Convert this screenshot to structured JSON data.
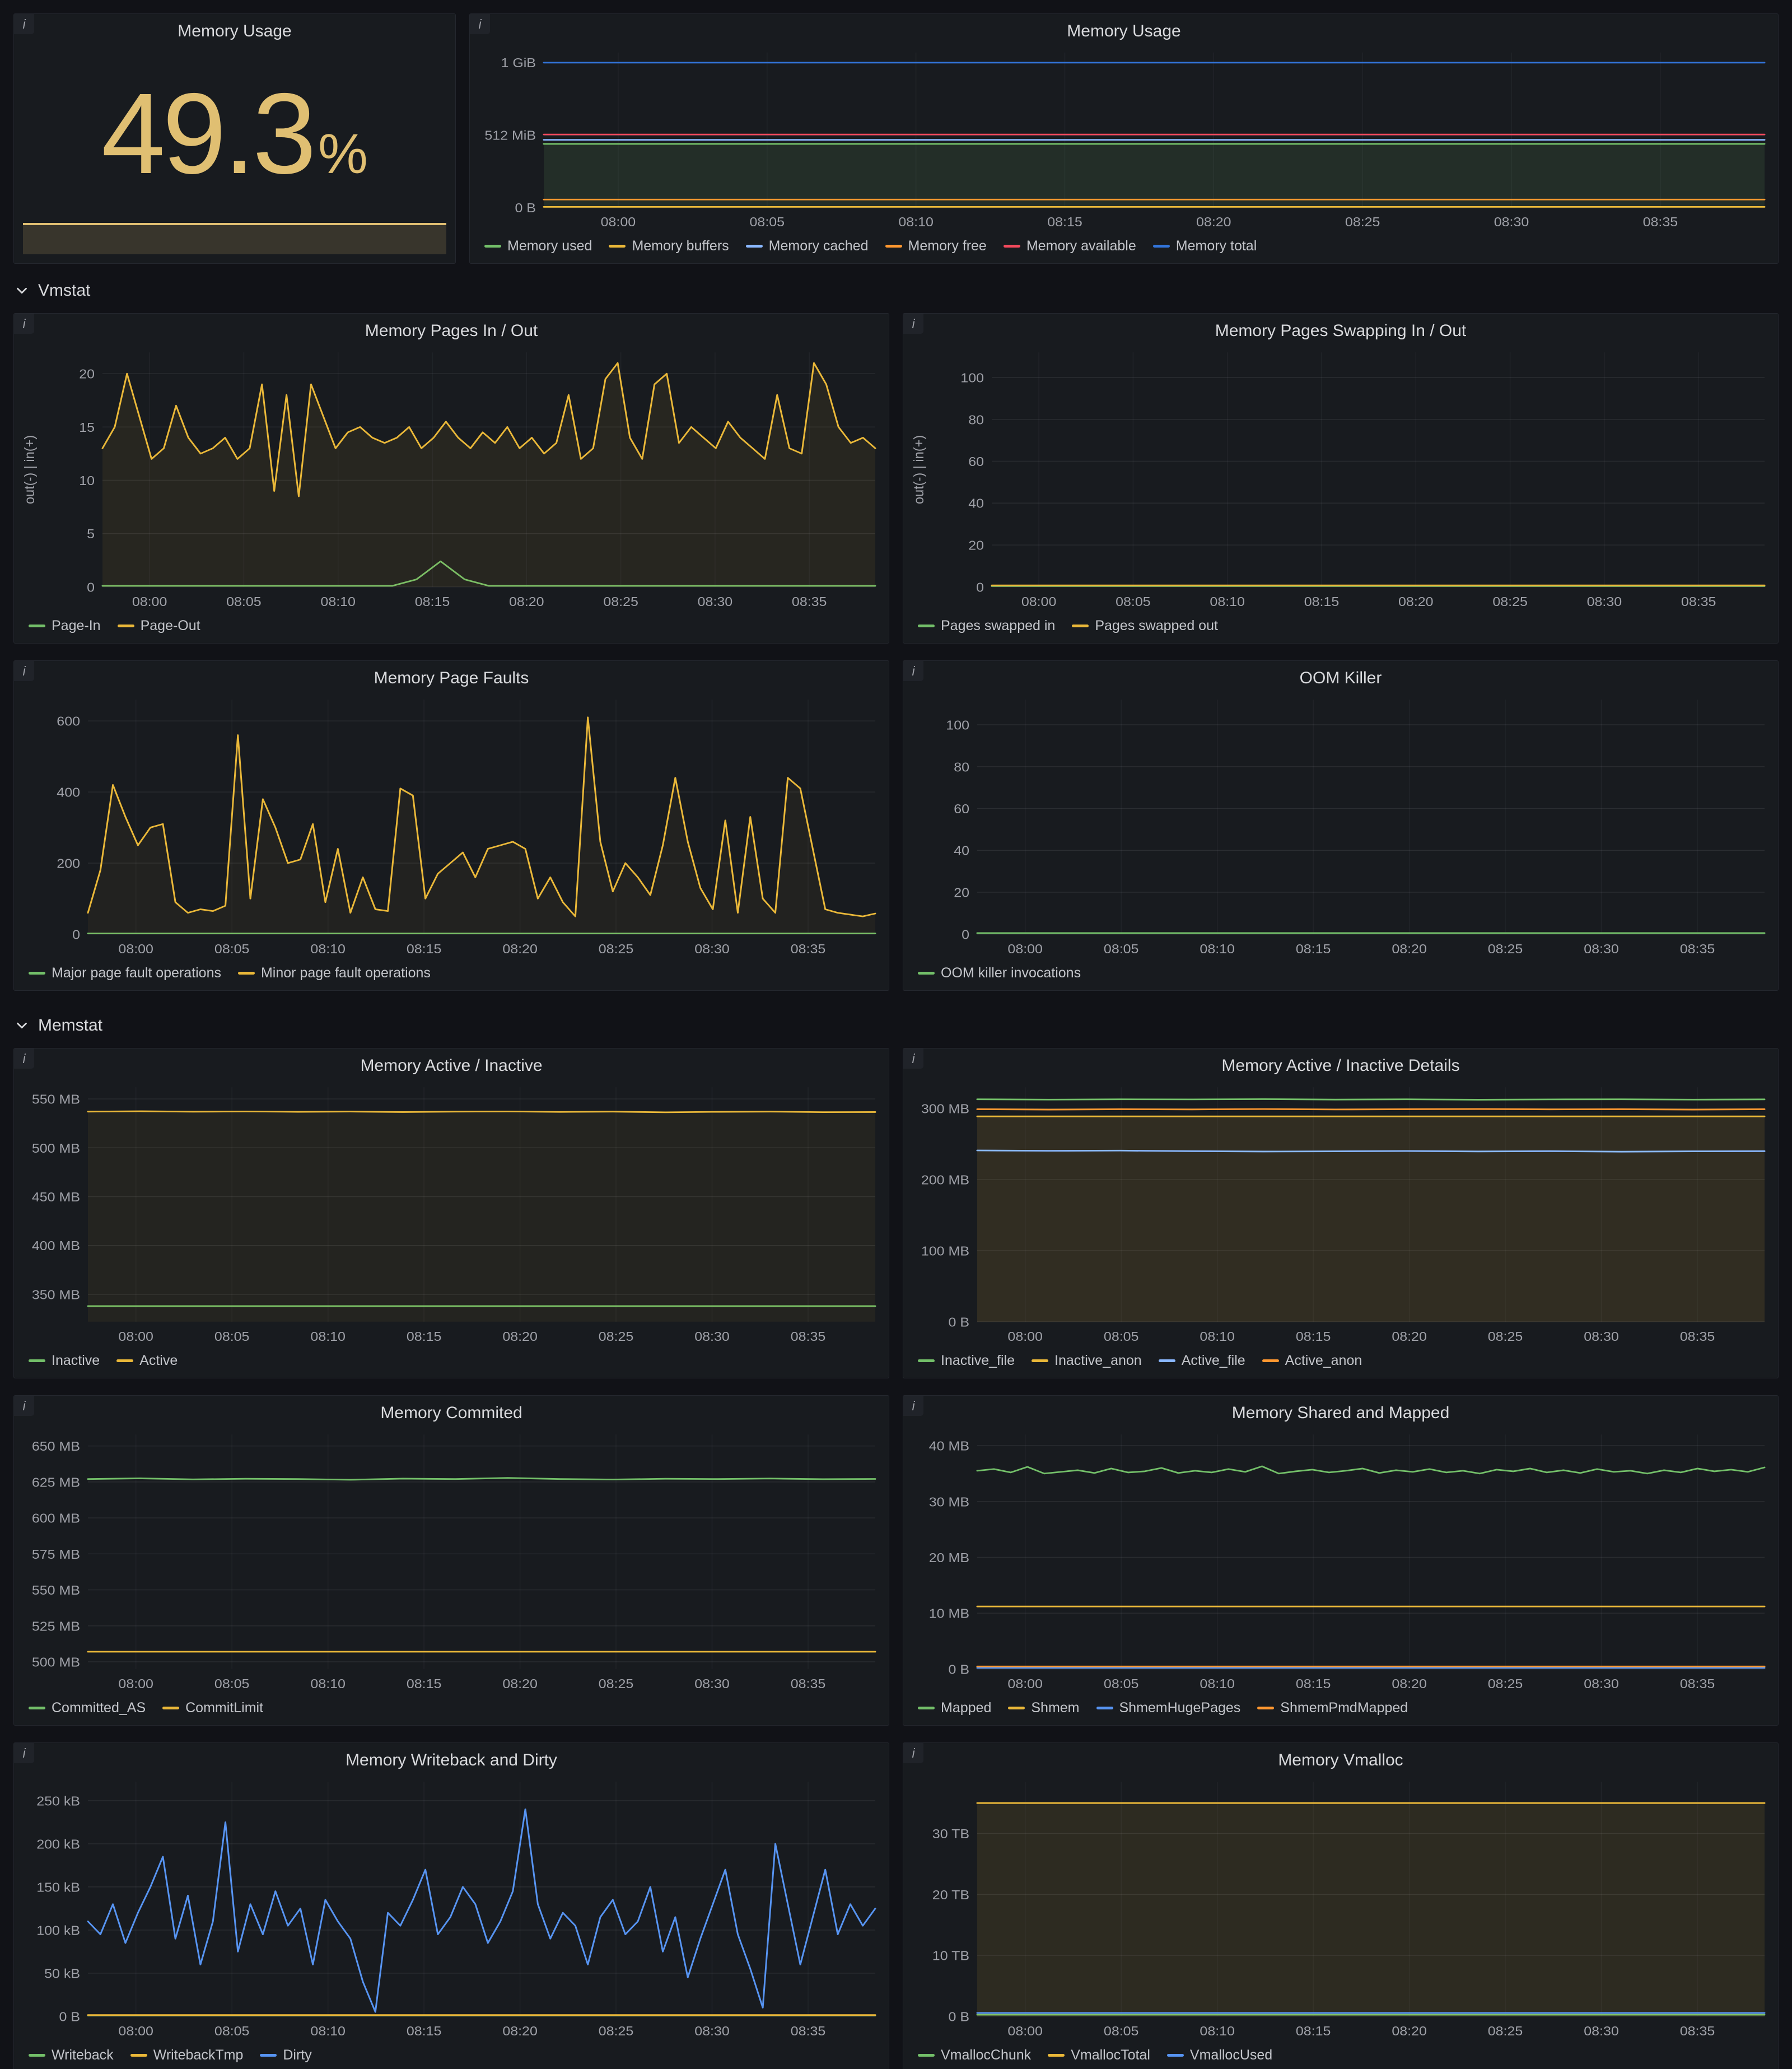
{
  "accent_colors": {
    "green": "#73bf69",
    "yellow": "#eab839",
    "blue": "#5794f2",
    "light_blue": "#8ab8ff",
    "dark_blue": "#3274d9",
    "orange": "#ff9830",
    "red": "#f2495c",
    "stat_yellow": "#e0bf72"
  },
  "time_axis": {
    "labels": [
      "08:00",
      "08:05",
      "08:10",
      "08:15",
      "08:20",
      "08:25",
      "08:30",
      "08:35"
    ],
    "minutes": [
      0,
      5,
      10,
      15,
      20,
      25,
      30,
      35
    ],
    "domain": [
      -2.5,
      38.5
    ]
  },
  "sections": {
    "vmstat": "Vmstat",
    "memstat": "Memstat"
  },
  "panels": {
    "memory_usage_stat": {
      "title": "Memory Usage",
      "value": "49.3",
      "unit": "%",
      "color": "#e0bf72"
    },
    "memory_usage_ts": {
      "title": "Memory Usage",
      "chart": {
        "type": "line",
        "ymin": 0,
        "ymax": 1.07,
        "yticks": [
          {
            "v": 0,
            "label": "0 B"
          },
          {
            "v": 0.5,
            "label": "512 MiB"
          },
          {
            "v": 1,
            "label": "1 GiB"
          }
        ],
        "series": [
          {
            "name": "Memory used",
            "color": "#73bf69",
            "fill": 0.12,
            "values": [
              0.44,
              0.44
            ]
          },
          {
            "name": "Memory buffers",
            "color": "#eab839",
            "fill": 0,
            "values": [
              0.006,
              0.006
            ]
          },
          {
            "name": "Memory cached",
            "color": "#8ab8ff",
            "fill": 0,
            "values": [
              0.468,
              0.468
            ]
          },
          {
            "name": "Memory free",
            "color": "#ff9830",
            "fill": 0,
            "values": [
              0.057,
              0.057
            ]
          },
          {
            "name": "Memory available",
            "color": "#f2495c",
            "fill": 0,
            "values": [
              0.505,
              0.505
            ]
          },
          {
            "name": "Memory total",
            "color": "#3274d9",
            "fill": 0,
            "values": [
              1.0,
              1.0
            ]
          }
        ]
      }
    },
    "pages_in_out": {
      "title": "Memory Pages In / Out",
      "chart": {
        "type": "line",
        "ymin": 0,
        "ymax": 22,
        "ylabel": "out(-) | in(+)",
        "yticks": [
          {
            "v": 0,
            "label": "0"
          },
          {
            "v": 5,
            "label": "5"
          },
          {
            "v": 10,
            "label": "10"
          },
          {
            "v": 15,
            "label": "15"
          },
          {
            "v": 20,
            "label": "20"
          }
        ],
        "series": [
          {
            "name": "Page-In",
            "color": "#73bf69",
            "fill": 0,
            "values": [
              0.1,
              0.1,
              0.1,
              0.1,
              0.1,
              0.1,
              0.1,
              0.1,
              0.1,
              0.1,
              0.1,
              0.1,
              0.1,
              0.7,
              2.4,
              0.7,
              0.1,
              0.1,
              0.1,
              0.1,
              0.1,
              0.1,
              0.1,
              0.1,
              0.1,
              0.1,
              0.1,
              0.1,
              0.1,
              0.1,
              0.1,
              0.1,
              0.1
            ]
          },
          {
            "name": "Page-Out",
            "color": "#eab839",
            "fill": 0.07,
            "values": [
              13,
              15,
              20,
              16,
              12,
              13,
              17,
              14,
              12.5,
              13,
              14,
              12,
              13,
              19,
              9,
              18,
              8.5,
              19,
              16,
              13,
              14.5,
              15,
              14,
              13.5,
              14,
              15,
              13,
              14,
              15.5,
              14,
              13,
              14.5,
              13.5,
              15,
              13,
              14,
              12.5,
              13.5,
              18,
              12,
              13,
              19.5,
              21,
              14,
              12,
              19,
              20,
              13.5,
              15,
              14,
              13,
              15.5,
              14,
              13,
              12,
              18,
              13,
              12.5,
              21,
              19,
              15,
              13.5,
              14,
              13
            ]
          }
        ]
      }
    },
    "swapping": {
      "title": "Memory Pages Swapping In / Out",
      "chart": {
        "type": "line",
        "ymin": 0,
        "ymax": 112,
        "ylabel": "out(-) | in(+)",
        "yticks": [
          {
            "v": 0,
            "label": "0"
          },
          {
            "v": 20,
            "label": "20"
          },
          {
            "v": 40,
            "label": "40"
          },
          {
            "v": 60,
            "label": "60"
          },
          {
            "v": 80,
            "label": "80"
          },
          {
            "v": 100,
            "label": "100"
          }
        ],
        "series": [
          {
            "name": "Pages swapped in",
            "color": "#73bf69",
            "fill": 0,
            "values": [
              0.4,
              0.4
            ]
          },
          {
            "name": "Pages swapped out",
            "color": "#eab839",
            "fill": 0,
            "values": [
              0.7,
              0.7
            ]
          }
        ]
      }
    },
    "page_faults": {
      "title": "Memory Page Faults",
      "chart": {
        "type": "line",
        "ymin": 0,
        "ymax": 660,
        "yticks": [
          {
            "v": 0,
            "label": "0"
          },
          {
            "v": 200,
            "label": "200"
          },
          {
            "v": 400,
            "label": "400"
          },
          {
            "v": 600,
            "label": "600"
          }
        ],
        "series": [
          {
            "name": "Major page fault operations",
            "color": "#73bf69",
            "fill": 0,
            "values": [
              2,
              2
            ]
          },
          {
            "name": "Minor page fault operations",
            "color": "#eab839",
            "fill": 0.05,
            "values": [
              60,
              180,
              420,
              330,
              250,
              300,
              310,
              90,
              60,
              70,
              65,
              80,
              560,
              100,
              380,
              300,
              200,
              210,
              310,
              90,
              240,
              60,
              160,
              70,
              65,
              410,
              390,
              100,
              170,
              200,
              230,
              160,
              240,
              250,
              260,
              240,
              100,
              160,
              90,
              50,
              610,
              260,
              120,
              200,
              160,
              110,
              250,
              440,
              260,
              130,
              70,
              320,
              60,
              330,
              100,
              60,
              440,
              410,
              240,
              70,
              60,
              55,
              50,
              58
            ]
          }
        ]
      }
    },
    "oom": {
      "title": "OOM Killer",
      "chart": {
        "type": "line",
        "ymin": 0,
        "ymax": 112,
        "yticks": [
          {
            "v": 0,
            "label": "0"
          },
          {
            "v": 20,
            "label": "20"
          },
          {
            "v": 40,
            "label": "40"
          },
          {
            "v": 60,
            "label": "60"
          },
          {
            "v": 80,
            "label": "80"
          },
          {
            "v": 100,
            "label": "100"
          }
        ],
        "series": [
          {
            "name": "OOM killer invocations",
            "color": "#73bf69",
            "fill": 0,
            "values": [
              0.5,
              0.5
            ]
          }
        ]
      }
    },
    "active_inactive": {
      "title": "Memory Active / Inactive",
      "chart": {
        "type": "line",
        "ymin": 322,
        "ymax": 562,
        "yticks": [
          {
            "v": 350,
            "label": "350 MB"
          },
          {
            "v": 400,
            "label": "400 MB"
          },
          {
            "v": 450,
            "label": "450 MB"
          },
          {
            "v": 500,
            "label": "500 MB"
          },
          {
            "v": 550,
            "label": "550 MB"
          }
        ],
        "series": [
          {
            "name": "Inactive",
            "color": "#73bf69",
            "fill": 0,
            "values": [
              338,
              338
            ]
          },
          {
            "name": "Active",
            "color": "#eab839",
            "fill": 0.06,
            "values": [
              537,
              537.4,
              536.9,
              537.2,
              536.8,
              537.1,
              536.6,
              537,
              537.2,
              536.7,
              537,
              536.3,
              536.8,
              537,
              536.5,
              536.6
            ]
          }
        ]
      }
    },
    "active_details": {
      "title": "Memory Active / Inactive Details",
      "chart": {
        "type": "line",
        "ymin": 0,
        "ymax": 330,
        "yticks": [
          {
            "v": 0,
            "label": "0 B"
          },
          {
            "v": 100,
            "label": "100 MB"
          },
          {
            "v": 200,
            "label": "200 MB"
          },
          {
            "v": 300,
            "label": "300 MB"
          }
        ],
        "series": [
          {
            "name": "Inactive_file",
            "color": "#73bf69",
            "fill": 0,
            "values": [
              313,
              312.5,
              313,
              312.8,
              313.2,
              312.6,
              313,
              312.4,
              312.8,
              313,
              312.5,
              312.9
            ]
          },
          {
            "name": "Inactive_anon",
            "color": "#eab839",
            "fill": 0.12,
            "values": [
              289,
              289
            ]
          },
          {
            "name": "Active_file",
            "color": "#8ab8ff",
            "fill": 0,
            "values": [
              241,
              240.5,
              240.8,
              240,
              239.5,
              239.8,
              240.2,
              239.6,
              240,
              239.3,
              239.8,
              240
            ]
          },
          {
            "name": "Active_anon",
            "color": "#ff9830",
            "fill": 0,
            "values": [
              299,
              298.5,
              299,
              298.7,
              299.2,
              298.6,
              299,
              299.3,
              298.8,
              299,
              298.5,
              299
            ]
          }
        ]
      }
    },
    "commited": {
      "title": "Memory Commited",
      "chart": {
        "type": "line",
        "ymin": 495,
        "ymax": 658,
        "yticks": [
          {
            "v": 500,
            "label": "500 MB"
          },
          {
            "v": 525,
            "label": "525 MB"
          },
          {
            "v": 550,
            "label": "550 MB"
          },
          {
            "v": 575,
            "label": "575 MB"
          },
          {
            "v": 600,
            "label": "600 MB"
          },
          {
            "v": 625,
            "label": "625 MB"
          },
          {
            "v": 650,
            "label": "650 MB"
          }
        ],
        "series": [
          {
            "name": "Committed_AS",
            "color": "#73bf69",
            "fill": 0,
            "values": [
              627,
              627.5,
              626.8,
              627.2,
              627,
              626.5,
              627.3,
              627,
              627.8,
              627,
              626.7,
              627.2,
              627,
              627.4,
              626.9,
              627.1
            ]
          },
          {
            "name": "CommitLimit",
            "color": "#eab839",
            "fill": 0,
            "values": [
              507,
              507
            ]
          }
        ]
      }
    },
    "shared_mapped": {
      "title": "Memory Shared and Mapped",
      "chart": {
        "type": "line",
        "ymin": 0,
        "ymax": 42,
        "yticks": [
          {
            "v": 0,
            "label": "0 B"
          },
          {
            "v": 10,
            "label": "10 MB"
          },
          {
            "v": 20,
            "label": "20 MB"
          },
          {
            "v": 30,
            "label": "30 MB"
          },
          {
            "v": 40,
            "label": "40 MB"
          }
        ],
        "series": [
          {
            "name": "Mapped",
            "color": "#73bf69",
            "fill": 0,
            "values": [
              35.5,
              35.8,
              35.2,
              36.2,
              35.0,
              35.3,
              35.6,
              35.1,
              35.9,
              35.2,
              35.4,
              36.0,
              35.1,
              35.5,
              35.2,
              35.8,
              35.3,
              36.3,
              35.0,
              35.4,
              35.7,
              35.2,
              35.5,
              35.9,
              35.1,
              35.6,
              35.3,
              35.8,
              35.2,
              35.5,
              35.0,
              35.7,
              35.4,
              35.9,
              35.2,
              35.6,
              35.1,
              35.8,
              35.3,
              35.5,
              35.0,
              35.6,
              35.2,
              35.9,
              35.4,
              35.7,
              35.3,
              36.1
            ]
          },
          {
            "name": "Shmem",
            "color": "#eab839",
            "fill": 0,
            "values": [
              11.2,
              11.2
            ]
          },
          {
            "name": "ShmemHugePages",
            "color": "#5794f2",
            "fill": 0,
            "values": [
              0.2,
              0.2
            ]
          },
          {
            "name": "ShmemPmdMapped",
            "color": "#ff9830",
            "fill": 0,
            "values": [
              0.45,
              0.45
            ]
          }
        ]
      }
    },
    "writeback_dirty": {
      "title": "Memory Writeback and Dirty",
      "chart": {
        "type": "line",
        "ymin": 0,
        "ymax": 272,
        "yticks": [
          {
            "v": 0,
            "label": "0 B"
          },
          {
            "v": 50,
            "label": "50 kB"
          },
          {
            "v": 100,
            "label": "100 kB"
          },
          {
            "v": 150,
            "label": "150 kB"
          },
          {
            "v": 200,
            "label": "200 kB"
          },
          {
            "v": 250,
            "label": "250 kB"
          }
        ],
        "series": [
          {
            "name": "Writeback",
            "color": "#73bf69",
            "fill": 0,
            "values": [
              0.8,
              0.8
            ]
          },
          {
            "name": "WritebackTmp",
            "color": "#eab839",
            "fill": 0,
            "values": [
              1.4,
              1.4
            ]
          },
          {
            "name": "Dirty",
            "color": "#5794f2",
            "fill": 0,
            "values": [
              110,
              95,
              130,
              85,
              120,
              150,
              185,
              90,
              140,
              60,
              110,
              225,
              75,
              130,
              95,
              145,
              105,
              125,
              60,
              135,
              110,
              90,
              40,
              5,
              120,
              105,
              135,
              170,
              95,
              115,
              150,
              130,
              85,
              110,
              145,
              240,
              130,
              90,
              120,
              105,
              60,
              115,
              135,
              95,
              110,
              150,
              75,
              115,
              45,
              90,
              130,
              170,
              95,
              55,
              10,
              200,
              130,
              60,
              115,
              170,
              95,
              130,
              105,
              125
            ]
          }
        ]
      }
    },
    "vmalloc": {
      "title": "Memory Vmalloc",
      "chart": {
        "type": "line",
        "ymin": 0,
        "ymax": 38.5,
        "yticks": [
          {
            "v": 0,
            "label": "0 B"
          },
          {
            "v": 10,
            "label": "10 TB"
          },
          {
            "v": 20,
            "label": "20 TB"
          },
          {
            "v": 30,
            "label": "30 TB"
          }
        ],
        "series": [
          {
            "name": "VmallocChunk",
            "color": "#73bf69",
            "fill": 0,
            "values": [
              0.25,
              0.25
            ]
          },
          {
            "name": "VmallocTotal",
            "color": "#eab839",
            "fill": 0.1,
            "values": [
              35,
              35
            ]
          },
          {
            "name": "VmallocUsed",
            "color": "#5794f2",
            "fill": 0,
            "values": [
              0.55,
              0.55
            ]
          }
        ]
      }
    }
  }
}
